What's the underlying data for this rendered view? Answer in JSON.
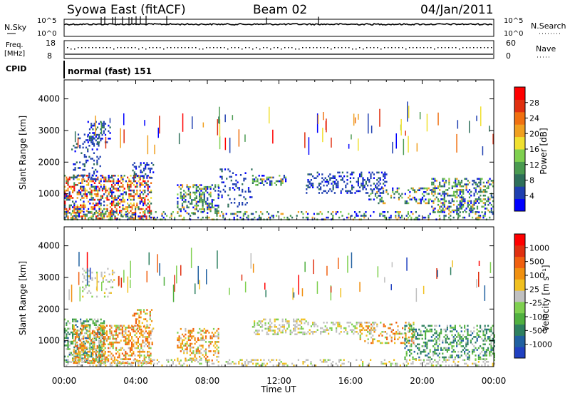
{
  "header": {
    "title": "Syowa East (fitACF)",
    "beam": "Beam 02",
    "date": "04/Jan/2011"
  },
  "top_panels": {
    "nsky_label": "N.Sky",
    "nsky_ticks": [
      "10^5",
      "10^0"
    ],
    "nsearch_label": "N.Search",
    "nsearch_ticks": [
      "10^5",
      "10^0"
    ],
    "freq_label_line1": "Freq.",
    "freq_label_line2": "[MHz]",
    "freq_ticks": [
      "18",
      "8"
    ],
    "nave_label": "Nave",
    "nave_ticks": [
      "60",
      "0"
    ],
    "cpid_label": "CPID",
    "cpid_text": "normal (fast) 151"
  },
  "chart_data": [
    {
      "type": "heatmap",
      "name": "power-panel",
      "ylabel": "Slant Range [km]",
      "yticks": [
        "4000",
        "3000",
        "2000",
        "1000"
      ],
      "ylim": [
        180,
        4600
      ],
      "colorbar_label": "Power [dB]",
      "colorbar_ticks": [
        "28",
        "24",
        "20",
        "16",
        "12",
        "8",
        "4"
      ],
      "colors": [
        "#0000ff",
        "#1f3fb0",
        "#2e6f5a",
        "#4a9a50",
        "#7fd050",
        "#f0e030",
        "#f0a020",
        "#f07010",
        "#e03010",
        "#ff0000"
      ],
      "scatter_regions": [
        {
          "t0": 0.0,
          "t1": 4.9,
          "r0": 200,
          "r1": 1600,
          "density": 0.85,
          "level": "high"
        },
        {
          "t0": 0.4,
          "t1": 2.0,
          "r0": 1400,
          "r1": 2900,
          "density": 0.35,
          "level": "low"
        },
        {
          "t0": 1.3,
          "t1": 2.6,
          "r0": 2600,
          "r1": 3300,
          "density": 0.55,
          "level": "low"
        },
        {
          "t0": 3.8,
          "t1": 5.0,
          "r0": 1500,
          "r1": 2000,
          "density": 0.6,
          "level": "low"
        },
        {
          "t0": 6.3,
          "t1": 8.6,
          "r0": 400,
          "r1": 1300,
          "density": 0.75,
          "level": "mid"
        },
        {
          "t0": 8.6,
          "t1": 10.5,
          "r0": 600,
          "r1": 1800,
          "density": 0.25,
          "level": "low"
        },
        {
          "t0": 10.5,
          "t1": 12.4,
          "r0": 1250,
          "r1": 1600,
          "density": 0.8,
          "level": "mid"
        },
        {
          "t0": 13.5,
          "t1": 18.0,
          "r0": 1000,
          "r1": 1700,
          "density": 0.55,
          "level": "low"
        },
        {
          "t0": 17.0,
          "t1": 20.5,
          "r0": 700,
          "r1": 1200,
          "density": 0.5,
          "level": "mid"
        },
        {
          "t0": 20.5,
          "t1": 24.0,
          "r0": 400,
          "r1": 1500,
          "density": 0.7,
          "level": "mid"
        },
        {
          "t0": 0.0,
          "t1": 24.0,
          "r0": 200,
          "r1": 450,
          "density": 0.45,
          "level": "mid"
        }
      ]
    },
    {
      "type": "heatmap",
      "name": "velocity-panel",
      "ylabel": "Slant Range [km]",
      "yticks": [
        "4000",
        "3000",
        "2000",
        "1000"
      ],
      "ylim": [
        180,
        4600
      ],
      "xticks": [
        "00:00",
        "04:00",
        "08:00",
        "12:00",
        "16:00",
        "20:00",
        "00:00"
      ],
      "xlabel": "Time UT",
      "colorbar_label": "Velocity [m s⁻¹]",
      "colorbar_ticks": [
        "1000",
        "500",
        "100",
        "25",
        "-25",
        "-100",
        "-500",
        "-1000"
      ],
      "colors": [
        "#2040c0",
        "#2060a0",
        "#2e8060",
        "#50b040",
        "#7fd050",
        "#c0c0c0",
        "#f0c020",
        "#f09010",
        "#f06010",
        "#e03010",
        "#ff0000"
      ],
      "scatter_regions": [
        {
          "t0": 0.0,
          "t1": 2.2,
          "r0": 300,
          "r1": 1700,
          "density": 0.8,
          "level": "green"
        },
        {
          "t0": 0.5,
          "t1": 4.9,
          "r0": 300,
          "r1": 1500,
          "density": 0.85,
          "level": "orange"
        },
        {
          "t0": 1.0,
          "t1": 3.0,
          "r0": 2400,
          "r1": 3300,
          "density": 0.35,
          "level": "grey"
        },
        {
          "t0": 3.8,
          "t1": 5.0,
          "r0": 1400,
          "r1": 2000,
          "density": 0.45,
          "level": "orange"
        },
        {
          "t0": 6.3,
          "t1": 8.6,
          "r0": 400,
          "r1": 1400,
          "density": 0.75,
          "level": "orange"
        },
        {
          "t0": 10.5,
          "t1": 13.5,
          "r0": 1200,
          "r1": 1700,
          "density": 0.75,
          "level": "grey"
        },
        {
          "t0": 13.5,
          "t1": 17.5,
          "r0": 1200,
          "r1": 1600,
          "density": 0.6,
          "level": "grey"
        },
        {
          "t0": 16.5,
          "t1": 19.5,
          "r0": 900,
          "r1": 1600,
          "density": 0.45,
          "level": "orange"
        },
        {
          "t0": 19.0,
          "t1": 24.0,
          "r0": 400,
          "r1": 1500,
          "density": 0.7,
          "level": "green"
        },
        {
          "t0": 0.0,
          "t1": 24.0,
          "r0": 200,
          "r1": 420,
          "density": 0.45,
          "level": "grey"
        }
      ]
    }
  ]
}
